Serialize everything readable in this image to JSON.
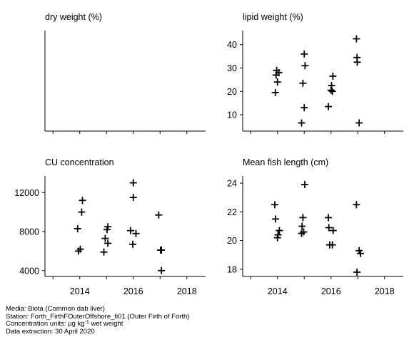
{
  "chart_data": [
    {
      "type": "scatter",
      "title": "dry weight (%)",
      "xlim": [
        2012.7,
        2018.7
      ],
      "x_ticks": [
        2014,
        2016,
        2018
      ],
      "x_tick_labels": [],
      "y_ticks": [],
      "y_tick_labels": [],
      "points": []
    },
    {
      "type": "scatter",
      "title": "lipid weight (%)",
      "xlim": [
        2012.7,
        2018.7
      ],
      "ylim": [
        3,
        46
      ],
      "x_ticks": [
        2014,
        2016,
        2018
      ],
      "x_tick_labels": [],
      "y_ticks": [
        10,
        20,
        30,
        40
      ],
      "y_tick_labels": [
        "10",
        "20",
        "30",
        "40"
      ],
      "points": [
        {
          "x": 2013.92,
          "y": 19.5
        },
        {
          "x": 2013.95,
          "y": 27.0
        },
        {
          "x": 2013.97,
          "y": 29.0
        },
        {
          "x": 2014.0,
          "y": 24.0
        },
        {
          "x": 2014.05,
          "y": 28.0
        },
        {
          "x": 2014.9,
          "y": 6.5
        },
        {
          "x": 2014.95,
          "y": 23.5
        },
        {
          "x": 2015.0,
          "y": 13.0
        },
        {
          "x": 2015.0,
          "y": 36.0
        },
        {
          "x": 2015.03,
          "y": 31.0
        },
        {
          "x": 2015.9,
          "y": 13.5
        },
        {
          "x": 2016.0,
          "y": 20.5
        },
        {
          "x": 2016.02,
          "y": 22.5
        },
        {
          "x": 2016.05,
          "y": 20.0
        },
        {
          "x": 2016.07,
          "y": 26.5
        },
        {
          "x": 2016.95,
          "y": 42.5
        },
        {
          "x": 2016.97,
          "y": 34.5
        },
        {
          "x": 2016.98,
          "y": 32.5
        },
        {
          "x": 2017.05,
          "y": 6.5
        }
      ]
    },
    {
      "type": "scatter",
      "title": "CU concentration",
      "xlim": [
        2012.7,
        2018.7
      ],
      "ylim": [
        3400,
        13700
      ],
      "x_ticks": [
        2014,
        2016,
        2018
      ],
      "x_tick_labels": [
        "2014",
        "2016",
        "2018"
      ],
      "y_ticks": [
        4000,
        8000,
        12000
      ],
      "y_tick_labels": [
        "4000",
        "8000",
        "12000"
      ],
      "points": [
        {
          "x": 2013.92,
          "y": 8300
        },
        {
          "x": 2013.95,
          "y": 6000
        },
        {
          "x": 2014.02,
          "y": 6200
        },
        {
          "x": 2014.07,
          "y": 10000
        },
        {
          "x": 2014.1,
          "y": 11200
        },
        {
          "x": 2014.9,
          "y": 5900
        },
        {
          "x": 2014.95,
          "y": 7300
        },
        {
          "x": 2015.02,
          "y": 8200
        },
        {
          "x": 2015.05,
          "y": 8500
        },
        {
          "x": 2015.05,
          "y": 6800
        },
        {
          "x": 2015.9,
          "y": 8100
        },
        {
          "x": 2015.98,
          "y": 6700
        },
        {
          "x": 2016.0,
          "y": 11500
        },
        {
          "x": 2016.0,
          "y": 13000
        },
        {
          "x": 2016.1,
          "y": 7800
        },
        {
          "x": 2016.95,
          "y": 9700
        },
        {
          "x": 2017.02,
          "y": 6100
        },
        {
          "x": 2017.05,
          "y": 6100
        },
        {
          "x": 2017.05,
          "y": 4000
        }
      ]
    },
    {
      "type": "scatter",
      "title": "Mean fish length (cm)",
      "xlim": [
        2012.7,
        2018.7
      ],
      "ylim": [
        17.5,
        24.5
      ],
      "x_ticks": [
        2014,
        2016,
        2018
      ],
      "x_tick_labels": [
        "2014",
        "2016",
        "2018"
      ],
      "y_ticks": [
        18,
        20,
        22,
        24
      ],
      "y_tick_labels": [
        "18",
        "20",
        "22",
        "24"
      ],
      "points": [
        {
          "x": 2013.9,
          "y": 22.5
        },
        {
          "x": 2013.93,
          "y": 21.5
        },
        {
          "x": 2014.0,
          "y": 20.2
        },
        {
          "x": 2014.02,
          "y": 20.4
        },
        {
          "x": 2014.07,
          "y": 20.7
        },
        {
          "x": 2014.9,
          "y": 20.5
        },
        {
          "x": 2014.92,
          "y": 21.0
        },
        {
          "x": 2014.95,
          "y": 21.6
        },
        {
          "x": 2014.98,
          "y": 20.6
        },
        {
          "x": 2015.02,
          "y": 23.9
        },
        {
          "x": 2015.9,
          "y": 21.6
        },
        {
          "x": 2015.92,
          "y": 20.9
        },
        {
          "x": 2015.95,
          "y": 19.7
        },
        {
          "x": 2016.05,
          "y": 19.7
        },
        {
          "x": 2016.08,
          "y": 20.7
        },
        {
          "x": 2016.95,
          "y": 22.5
        },
        {
          "x": 2016.97,
          "y": 17.8
        },
        {
          "x": 2017.05,
          "y": 19.3
        },
        {
          "x": 2017.1,
          "y": 19.1
        }
      ]
    }
  ],
  "footer": {
    "media": "Media: Biota (Common dab liver)",
    "station": "Station: Forth_FirthFOuterOffshore_fi01 (Outer Firth of Forth)",
    "units_prefix": "Concentration units:  µg kg",
    "units_sup": "-1",
    "units_suffix": " wet weight",
    "extraction": "Data extraction: 30 April 2020"
  }
}
